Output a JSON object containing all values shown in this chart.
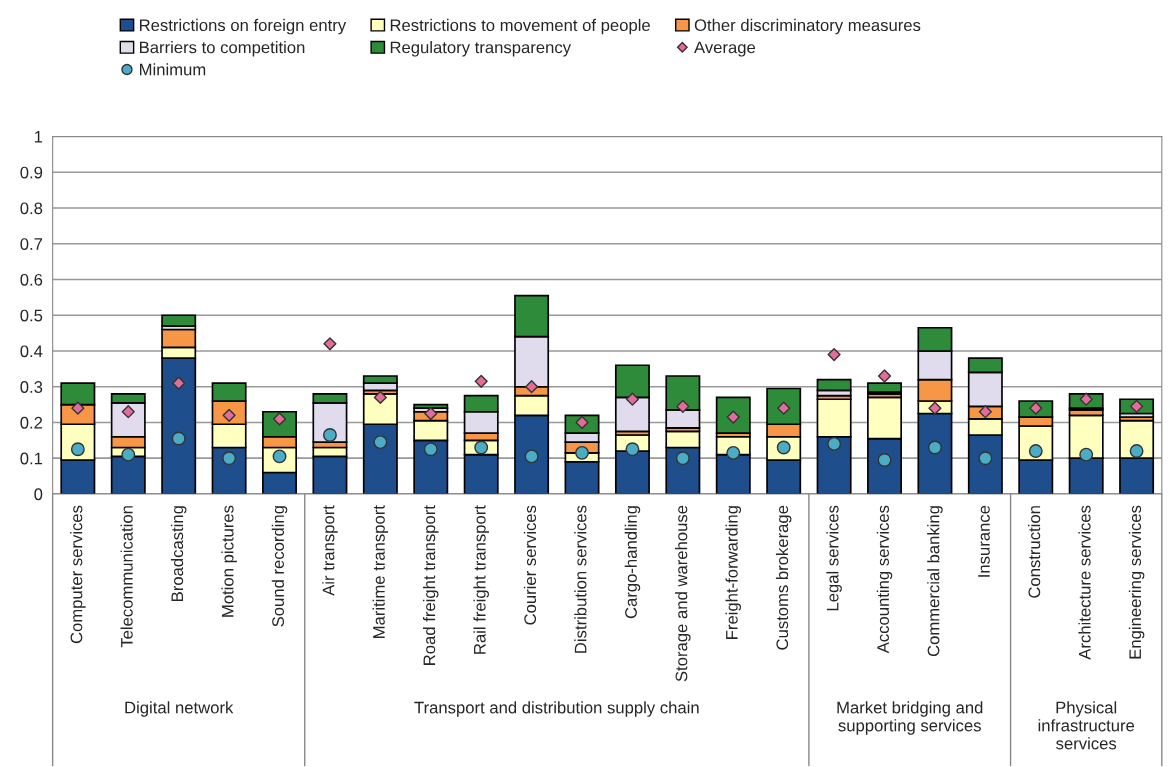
{
  "chart_data": {
    "type": "bar",
    "stacked": true,
    "categories": [
      "Computer services",
      "Telecommunication",
      "Broadcasting",
      "Motion pictures",
      "Sound recording",
      "Air transport",
      "Maritime transport",
      "Road freight transport",
      "Rail freight transport",
      "Courier services",
      "Distribution services",
      "Cargo-handling",
      "Storage and warehouse",
      "Freight-forwarding",
      "Customs brokerage",
      "Legal services",
      "Accounting services",
      "Commercial banking",
      "Insurance",
      "Construction",
      "Architecture services",
      "Engineering services"
    ],
    "series": [
      {
        "name": "Restrictions on foreign entry",
        "color": "#1f4e8c",
        "values": [
          0.095,
          0.105,
          0.38,
          0.13,
          0.06,
          0.105,
          0.195,
          0.15,
          0.11,
          0.22,
          0.09,
          0.12,
          0.13,
          0.11,
          0.095,
          0.16,
          0.155,
          0.225,
          0.165,
          0.095,
          0.1,
          0.1
        ]
      },
      {
        "name": "Restrictions to movement of people",
        "color": "#ffffc0",
        "values": [
          0.1,
          0.025,
          0.03,
          0.065,
          0.07,
          0.025,
          0.085,
          0.055,
          0.04,
          0.055,
          0.025,
          0.045,
          0.045,
          0.05,
          0.065,
          0.105,
          0.115,
          0.035,
          0.045,
          0.095,
          0.12,
          0.105
        ]
      },
      {
        "name": "Other discriminatory measures",
        "color": "#f79646",
        "values": [
          0.055,
          0.03,
          0.05,
          0.065,
          0.03,
          0.015,
          0.01,
          0.025,
          0.02,
          0.025,
          0.03,
          0.01,
          0.01,
          0.01,
          0.035,
          0.01,
          0.01,
          0.06,
          0.035,
          0.025,
          0.015,
          0.01
        ]
      },
      {
        "name": "Barriers to competition",
        "color": "#e0dcee",
        "values": [
          0,
          0.095,
          0.01,
          0,
          0,
          0.11,
          0.02,
          0.01,
          0.06,
          0.14,
          0.025,
          0.095,
          0.05,
          0,
          0,
          0.015,
          0.005,
          0.08,
          0.095,
          0,
          0.005,
          0.01
        ]
      },
      {
        "name": "Regulatory transparency",
        "color": "#2e8b3a",
        "values": [
          0.06,
          0.025,
          0.03,
          0.05,
          0.07,
          0.025,
          0.02,
          0.01,
          0.045,
          0.115,
          0.05,
          0.09,
          0.095,
          0.1,
          0.1,
          0.03,
          0.025,
          0.065,
          0.04,
          0.045,
          0.04,
          0.04
        ]
      },
      {
        "name": "Average",
        "type": "scatter",
        "marker": "diamond",
        "color": "#e36c9a",
        "values": [
          0.24,
          0.23,
          0.31,
          0.22,
          0.21,
          0.42,
          0.27,
          0.225,
          0.315,
          0.3,
          0.2,
          0.265,
          0.245,
          0.215,
          0.24,
          0.39,
          0.33,
          0.24,
          0.23,
          0.24,
          0.265,
          0.245
        ]
      },
      {
        "name": "Minimum",
        "type": "scatter",
        "marker": "circle",
        "color": "#4bacc6",
        "values": [
          0.125,
          0.11,
          0.155,
          0.1,
          0.105,
          0.165,
          0.145,
          0.125,
          0.13,
          0.105,
          0.115,
          0.125,
          0.1,
          0.115,
          0.13,
          0.14,
          0.095,
          0.13,
          0.1,
          0.12,
          0.11,
          0.12
        ]
      }
    ],
    "ylim": [
      0,
      1
    ],
    "yticks": [
      0,
      0.1,
      0.2,
      0.3,
      0.4,
      0.5,
      0.6,
      0.7,
      0.8,
      0.9,
      1
    ],
    "grid": "y",
    "legend": "top",
    "annotations": [
      "Digital network",
      "Transport and distribution supply chain",
      "Market bridging and\nsupporting services",
      "Physical\ninfrastructure\nservices"
    ]
  }
}
